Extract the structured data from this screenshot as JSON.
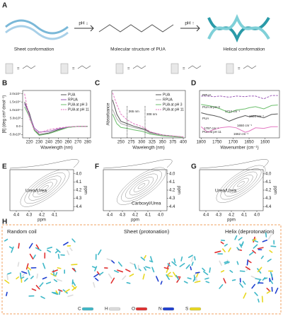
{
  "panel_A": {
    "label": "A",
    "ph_down": "pH ↓",
    "ph_up": "pH ↑",
    "captions": [
      "Sheet conformation",
      "Molecular structure of PUA",
      "Helical conformation"
    ],
    "legend_equals": [
      "=",
      "=",
      "=",
      "=",
      "="
    ]
  },
  "chart_data": [
    {
      "type": "line",
      "label": "B",
      "xlabel": "Wavelength (nm)",
      "ylabel": "[θ] (deg cm² dmol⁻¹)",
      "x": [
        215,
        220,
        225,
        230,
        240,
        250,
        260,
        270,
        280
      ],
      "xlim": [
        213,
        283
      ],
      "xticks": [
        220,
        230,
        240,
        250,
        260,
        270,
        280
      ],
      "ylim": [
        -7000,
        22000
      ],
      "yticks": [
        {
          "value": -5000,
          "label": "-5.0x10³"
        },
        {
          "value": 0,
          "label": "0.0"
        },
        {
          "value": 5000,
          "label": "5.0x10³"
        },
        {
          "value": 10000,
          "label": "1.0x10⁴"
        },
        {
          "value": 15000,
          "label": "1.5x10⁴"
        },
        {
          "value": 20000,
          "label": "2.0x10⁴"
        }
      ],
      "series": [
        {
          "name": "PUA",
          "color": "#555555",
          "values": [
            15000,
            8000,
            -2000,
            -5000,
            -4000,
            -2000,
            -500,
            0,
            0
          ]
        },
        {
          "name": "RPUA",
          "color": "#9b59b6",
          "values": [
            14000,
            7000,
            -1000,
            -3500,
            -3000,
            -1500,
            -400,
            0,
            0
          ]
        },
        {
          "name": "PUA at pH 3",
          "color": "#6cbf6c",
          "values": [
            12000,
            6000,
            -2500,
            -5500,
            -4500,
            -2500,
            -600,
            0,
            0
          ]
        },
        {
          "name": "PUA at pH 11",
          "color": "#e377c2",
          "dashed": true,
          "values": [
            20000,
            5000,
            -2000,
            -4000,
            -2000,
            -1000,
            -200,
            0,
            0
          ]
        }
      ]
    },
    {
      "type": "line",
      "label": "C",
      "xlabel": "Wavelength (nm)",
      "ylabel": "Absorbance",
      "x": [
        230,
        240,
        250,
        265,
        280,
        300,
        308,
        320,
        350,
        400
      ],
      "xlim": [
        228,
        405
      ],
      "xticks": [
        250,
        275,
        300,
        325,
        350,
        375,
        400
      ],
      "ylim": [
        0,
        1
      ],
      "annotations": [
        {
          "text": "265 nm",
          "x": 265
        },
        {
          "text": "308 nm",
          "x": 308
        }
      ],
      "series": [
        {
          "name": "PUA",
          "color": "#555555",
          "values": [
            0.8,
            0.5,
            0.35,
            0.3,
            0.25,
            0.2,
            0.18,
            0.12,
            0.06,
            0.02
          ]
        },
        {
          "name": "RPUA",
          "color": "#aaaaaa",
          "values": [
            0.6,
            0.4,
            0.3,
            0.26,
            0.22,
            0.18,
            0.16,
            0.1,
            0.05,
            0.02
          ]
        },
        {
          "name": "PUA at pH 3",
          "color": "#6cbf6c",
          "values": [
            0.5,
            0.3,
            0.22,
            0.2,
            0.17,
            0.14,
            0.12,
            0.08,
            0.04,
            0.01
          ]
        },
        {
          "name": "PUA at pH 11",
          "color": "#e377c2",
          "dashed": true,
          "values": [
            0.95,
            0.7,
            0.5,
            0.38,
            0.3,
            0.24,
            0.2,
            0.13,
            0.06,
            0.02
          ]
        }
      ]
    },
    {
      "type": "line",
      "label": "D",
      "xlabel": "Wavenumber (cm⁻¹)",
      "x": [
        1800,
        1780,
        1760,
        1740,
        1712,
        1690,
        1662,
        1650,
        1630,
        1604,
        1580,
        1560
      ],
      "xlim": [
        1805,
        1555
      ],
      "xticks": [
        1800,
        1750,
        1700,
        1650,
        1600
      ],
      "ylim": [
        0.1,
        0.95
      ],
      "annotations": [
        "1604 cm⁻¹",
        "1712 cm⁻¹",
        "1650 cm⁻¹",
        "1797 cm⁻¹",
        "1662 cm⁻¹"
      ],
      "series": [
        {
          "name": "RPUA",
          "color": "#9b59b6",
          "dashed": true,
          "values": [
            0.85,
            0.85,
            0.84,
            0.85,
            0.83,
            0.85,
            0.84,
            0.85,
            0.85,
            0.8,
            0.86,
            0.86
          ]
        },
        {
          "name": "PUA at pH 3",
          "color": "#6cbf6c",
          "values": [
            0.7,
            0.68,
            0.66,
            0.62,
            0.55,
            0.6,
            0.62,
            0.64,
            0.66,
            0.62,
            0.68,
            0.69
          ]
        },
        {
          "name": "PUA",
          "color": "#555555",
          "values": [
            0.55,
            0.52,
            0.5,
            0.47,
            0.4,
            0.45,
            0.5,
            0.48,
            0.5,
            0.46,
            0.52,
            0.53
          ]
        },
        {
          "name": "PUA at pH 11",
          "color": "#e377c2",
          "values": [
            0.3,
            0.2,
            0.25,
            0.28,
            0.3,
            0.28,
            0.2,
            0.22,
            0.28,
            0.27,
            0.3,
            0.3
          ]
        }
      ]
    }
  ],
  "nmr_panels": [
    {
      "label": "E",
      "xlabel": "ppm",
      "ylabel": "ppm",
      "annotation": "Urea/Urea",
      "xlim": [
        4.45,
        3.95
      ],
      "ylim": [
        3.95,
        4.45
      ],
      "xticks": [
        {
          "value": 4.4,
          "label": "4.4"
        },
        {
          "value": 4.3,
          "label": "4.3"
        },
        {
          "value": 4.2,
          "label": "4.2"
        },
        {
          "value": 4.1,
          "label": "4.1"
        }
      ],
      "yticks": [
        {
          "value": 4,
          "label": "4.0"
        },
        4.1,
        4.2,
        4.3,
        4.4
      ]
    },
    {
      "label": "F",
      "xlabel": "ppm",
      "ylabel": "ppm",
      "annotation": "Carboxyl/Urea",
      "xlim": [
        4.45,
        3.95
      ],
      "ylim": [
        3.95,
        4.45
      ],
      "xticks": [
        4.4,
        4.3,
        4.2,
        4.1,
        {
          "value": 4,
          "label": "4.0"
        }
      ],
      "yticks": [
        {
          "value": 4,
          "label": "4.0"
        },
        4.1,
        4.2,
        4.3,
        4.4
      ]
    },
    {
      "label": "G",
      "xlabel": "ppm",
      "ylabel": "ppm",
      "annotation": "Urea/Urea",
      "xlim": [
        4.45,
        3.95
      ],
      "ylim": [
        3.95,
        4.45
      ],
      "xticks": [
        4.4,
        4.3,
        4.2,
        4.1,
        {
          "value": 4,
          "label": "4.0"
        }
      ],
      "yticks": [
        {
          "value": 4,
          "label": "4.0"
        },
        4.1,
        4.2,
        4.3,
        4.4
      ]
    }
  ],
  "panel_H": {
    "label": "H",
    "titles": [
      "Random coil",
      "Sheet (protonation)",
      "Helix (deprotonation)"
    ],
    "atoms": [
      {
        "name": "C",
        "color": "#3fb8c8"
      },
      {
        "name": "H",
        "color": "#dddddd"
      },
      {
        "name": "O",
        "color": "#e03030"
      },
      {
        "name": "N",
        "color": "#2040d0"
      },
      {
        "name": "S",
        "color": "#e8d820"
      }
    ]
  }
}
